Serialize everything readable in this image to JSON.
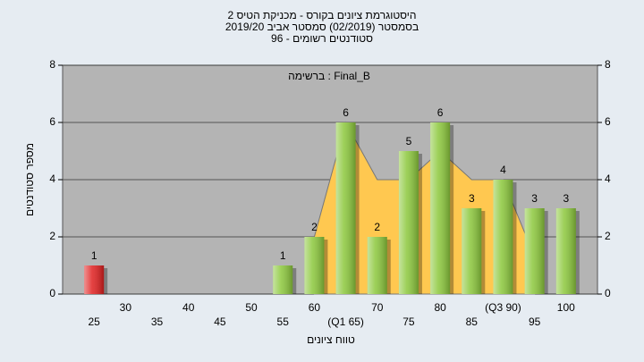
{
  "chart_data": {
    "type": "bar",
    "title": [
      "היסטוגרמת ציונים בקורס - מכניקת הטיס 2",
      "בסמסטר (02/2019)  סמסטר אביב 2019/20",
      "סטודנטים רשומים - 96"
    ],
    "annotation": "ברשימה : Final_B",
    "x_label": "טווח ציונים",
    "y_label": "מספר סטודנטים",
    "categories": [
      "25",
      "30",
      "35",
      "40",
      "45",
      "50",
      "55",
      "60",
      "(Q1 65)",
      "70",
      "75",
      "80",
      "85",
      "(Q3 90)",
      "95",
      "100"
    ],
    "values": [
      1,
      0,
      0,
      0,
      0,
      0,
      1,
      2,
      6,
      2,
      5,
      6,
      3,
      4,
      3,
      3
    ],
    "colors": [
      "#e02020",
      "#8cc83c",
      "#8cc83c",
      "#8cc83c",
      "#8cc83c",
      "#8cc83c",
      "#8cc83c",
      "#8cc83c",
      "#8cc83c",
      "#8cc83c",
      "#8cc83c",
      "#8cc83c",
      "#8cc83c",
      "#8cc83c",
      "#8cc83c",
      "#8cc83c"
    ],
    "area_values": [
      null,
      null,
      null,
      null,
      null,
      null,
      null,
      2,
      6,
      4,
      4,
      5,
      4,
      4,
      1.3,
      null
    ],
    "area_color": "#ffc850",
    "ylim": [
      0,
      8
    ],
    "yticks": [
      0,
      2,
      4,
      6,
      8
    ],
    "y2lim": [
      0,
      8
    ],
    "y2ticks": [
      0,
      2,
      4,
      6,
      8
    ],
    "grid": true
  }
}
